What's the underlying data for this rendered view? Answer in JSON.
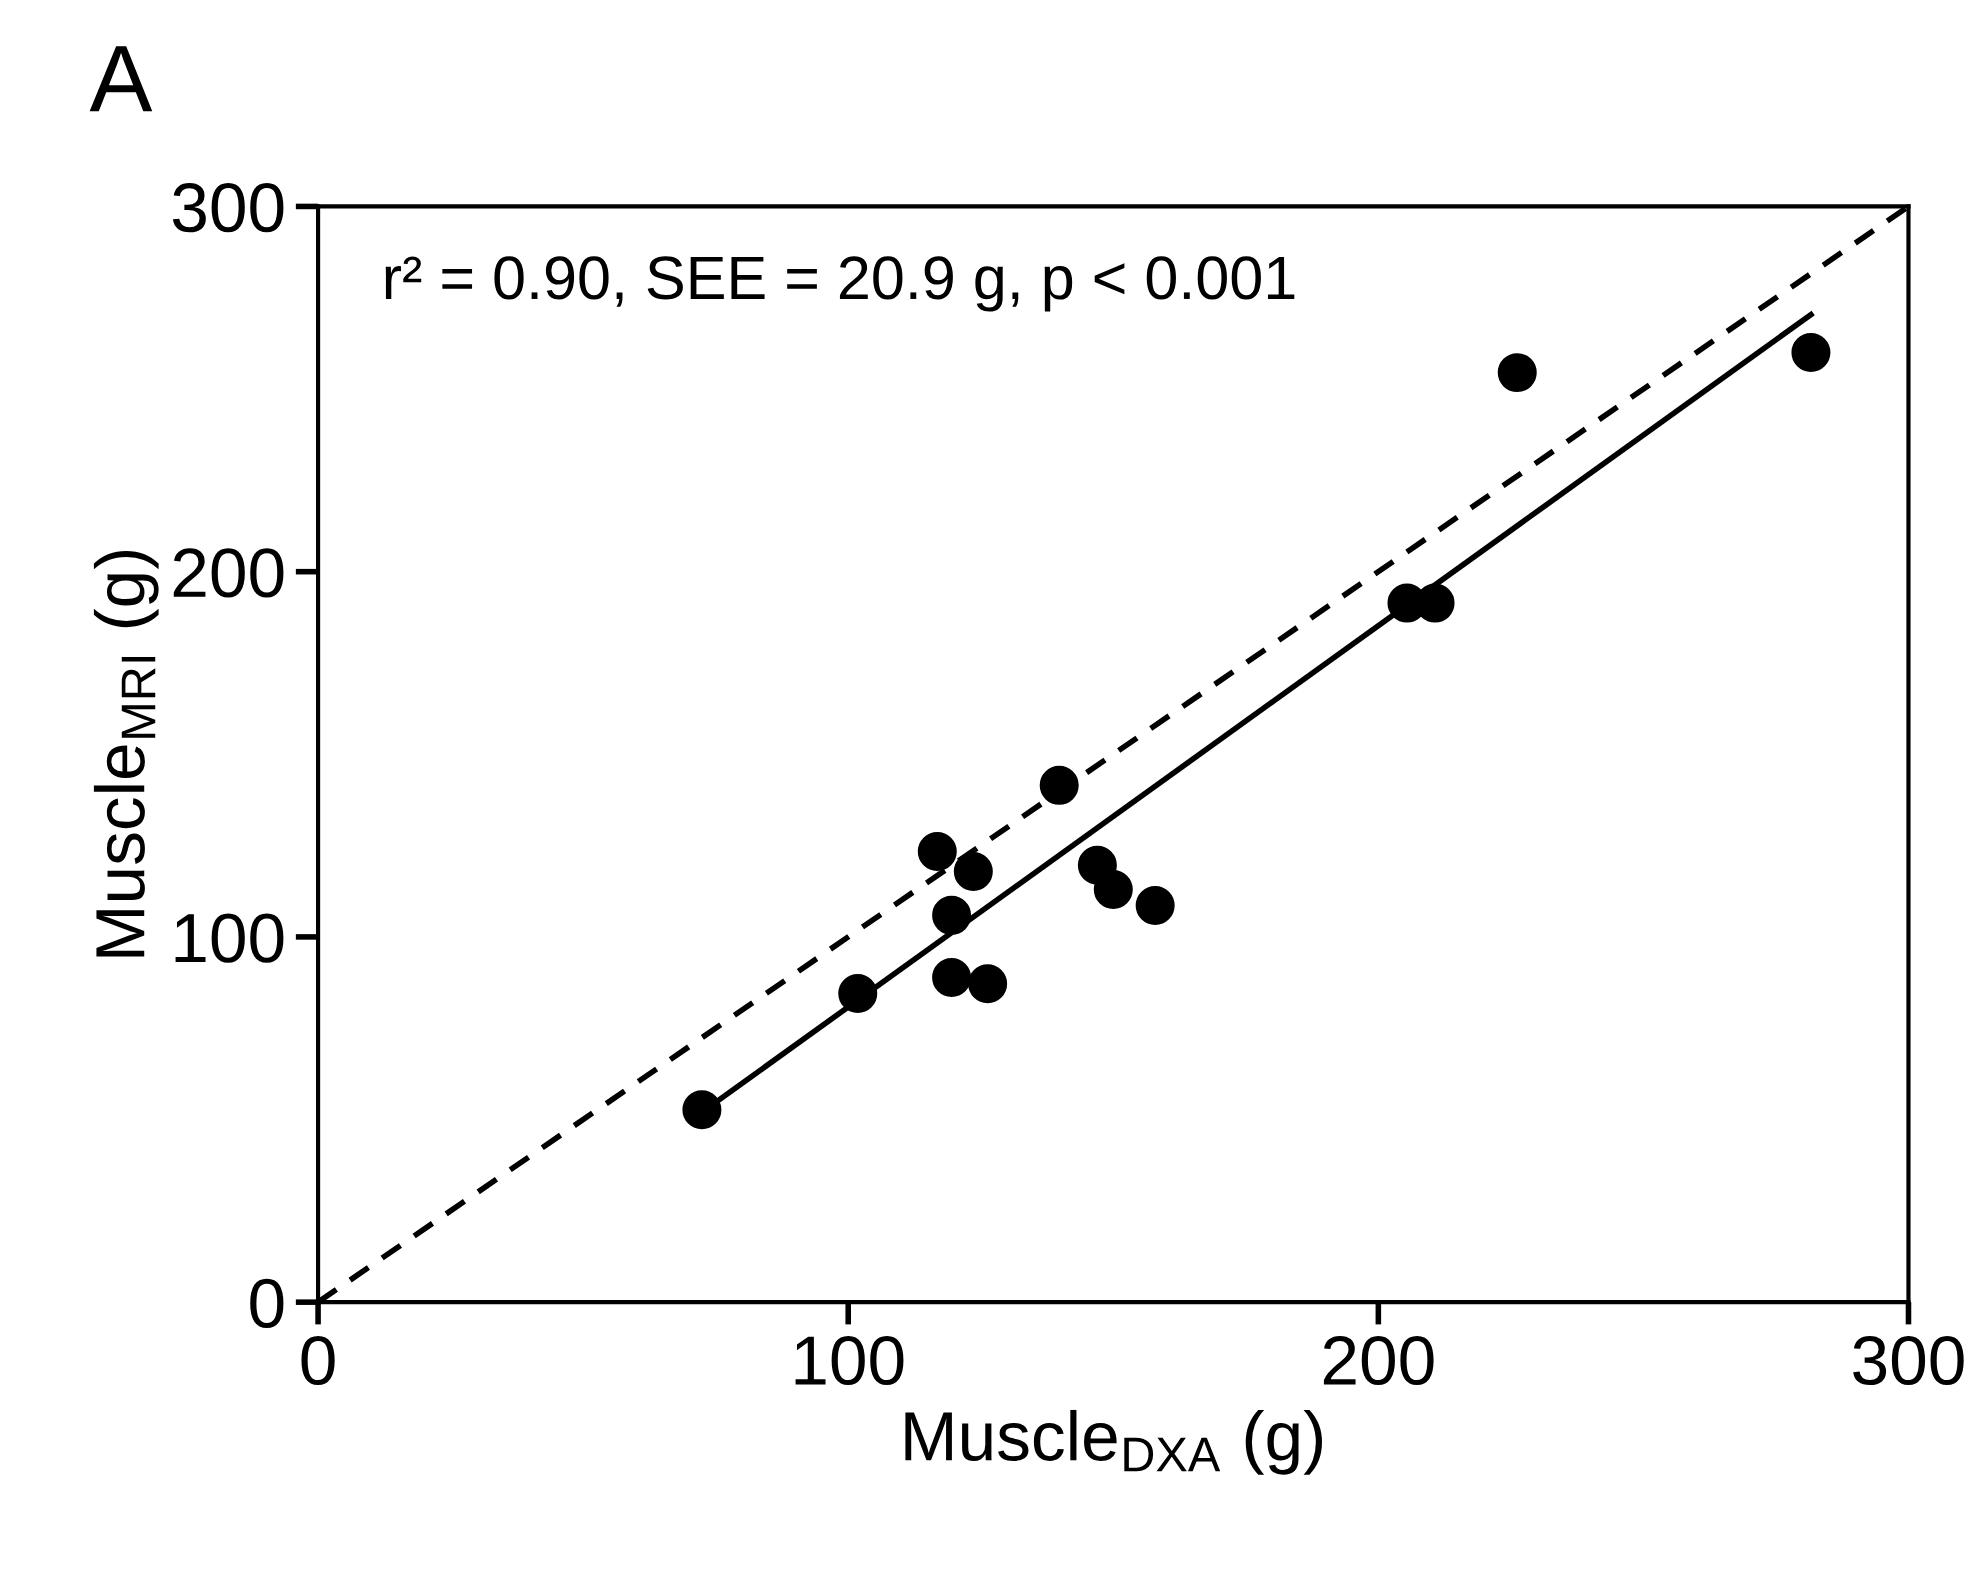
{
  "chart_data": {
    "type": "scatter",
    "title": "A",
    "xlabel": "Muscle$_{DXA}$ (g)",
    "ylabel": "Muscle$_{MRI}$ (g)",
    "annotations": [
      "r² = 0.90, SEE = 20.9 g, p < 0.001"
    ],
    "xlim": [
      0,
      300
    ],
    "ylim": [
      0,
      300
    ],
    "xticks": [
      0,
      100,
      200,
      300
    ],
    "yticks": [
      0,
      100,
      200,
      300
    ],
    "grid": false,
    "legend": false,
    "marker": "circle",
    "series": [
      {
        "color": "#000000",
        "x": [
          72.4,
          101.8,
          116.8,
          119.5,
          119.5,
          123.6,
          126.3,
          139.8,
          147.0,
          150.0,
          157.9,
          205.4,
          210.7,
          226.2,
          281.6
        ],
        "values": [
          52.7,
          84.5,
          123.4,
          105.9,
          88.9,
          117.9,
          87.2,
          141.5,
          119.6,
          113.0,
          108.6,
          191.4,
          191.4,
          254.5,
          260.0
        ]
      },
      {
        "type": "line",
        "color": "#000000",
        "line_style": "solid",
        "marker": "none",
        "x": [
          72.4,
          281.6
        ],
        "values": [
          52.0,
          270.4
        ]
      },
      {
        "type": "line",
        "color": "#000000",
        "line_style": "dashed",
        "marker": "none",
        "x": [
          0,
          300
        ],
        "values": [
          0,
          300
        ]
      }
    ]
  }
}
